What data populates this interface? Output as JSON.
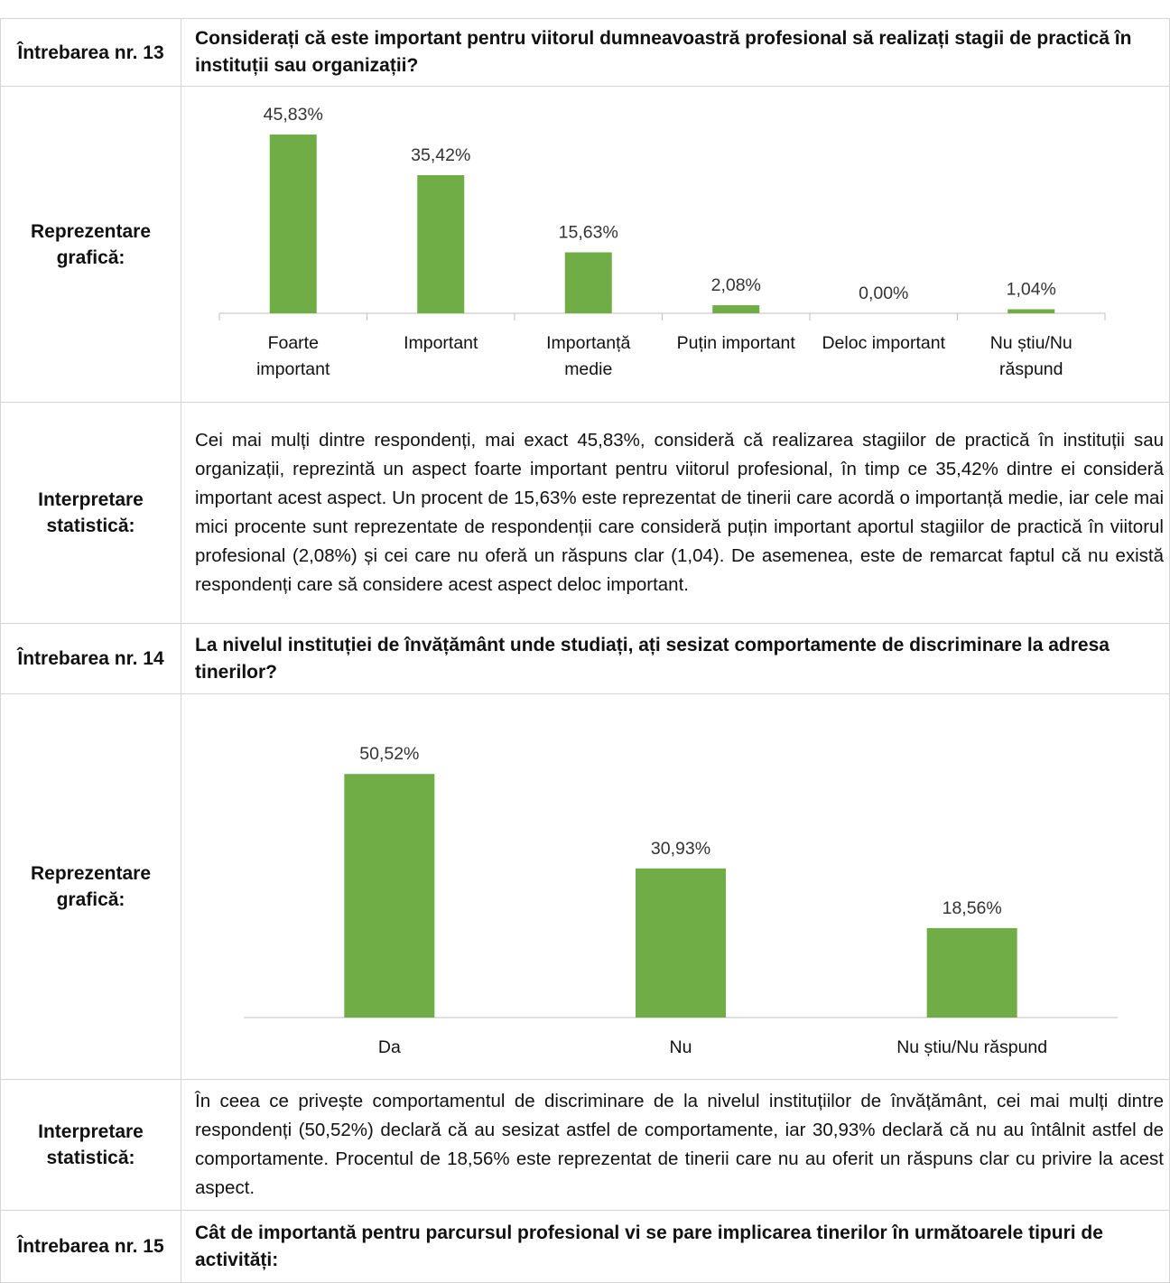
{
  "rows": [
    {
      "label": "Întrebarea nr. 13",
      "text": "Considerați că este important pentru viitorul dumneavoastră profesional să realizați stagii de practică în instituții sau organizații?"
    },
    {
      "label": "Reprezentare grafică:",
      "chart": {
        "type": "bar",
        "categories": [
          "Foarte important",
          "Important",
          "Importanță medie",
          "Puțin important",
          "Deloc important",
          "Nu știu/Nu răspund"
        ],
        "values": [
          45.83,
          35.42,
          15.63,
          2.08,
          0,
          1.04
        ],
        "value_labels": [
          "45,83%",
          "35,42%",
          "15,63%",
          "2,08%",
          "0,00%",
          "1,04%"
        ],
        "color": "#70ad47"
      }
    },
    {
      "label": "Interpretare statistică:",
      "text": "Cei mai mulți dintre respondenți, mai exact 45,83%, consideră că realizarea stagiilor de practică în instituții sau organizații, reprezintă un aspect foarte important pentru viitorul profesional, în timp ce 35,42% dintre ei consideră important acest aspect. Un procent de 15,63% este reprezentat de tinerii care acordă o importanță medie, iar cele mai mici procente sunt reprezentate de respondenții care consideră puțin important aportul stagiilor de practică în viitorul profesional (2,08%) și cei care nu oferă un răspuns clar (1,04). De asemenea, este de remarcat faptul că nu există respondenți care să considere acest aspect deloc important."
    },
    {
      "label": "Întrebarea nr. 14",
      "text": "La nivelul instituției de învățământ unde studiați, ați sesizat comportamente de discriminare la adresa tinerilor?"
    },
    {
      "label": "Reprezentare grafică:",
      "chart": {
        "type": "bar",
        "categories": [
          "Da",
          "Nu",
          "Nu știu/Nu răspund"
        ],
        "values": [
          50.52,
          30.93,
          18.56
        ],
        "value_labels": [
          "50,52%",
          "30,93%",
          "18,56%"
        ],
        "color": "#70ad47"
      }
    },
    {
      "label": "Interpretare statistică:",
      "text": "În ceea ce privește comportamentul de discriminare de la nivelul instituțiilor de învățământ, cei mai mulți dintre respondenți (50,52%) declară că au sesizat astfel de comportamente, iar 30,93% declară că nu au întâlnit astfel de comportamente. Procentul de 18,56% este reprezentat de tinerii care nu au oferit un răspuns clar cu privire la acest aspect."
    },
    {
      "label": "Întrebarea nr. 15",
      "text": "Cât de importantă pentru parcursul profesional vi se pare implicarea tinerilor în următoarele tipuri de activități:"
    }
  ]
}
